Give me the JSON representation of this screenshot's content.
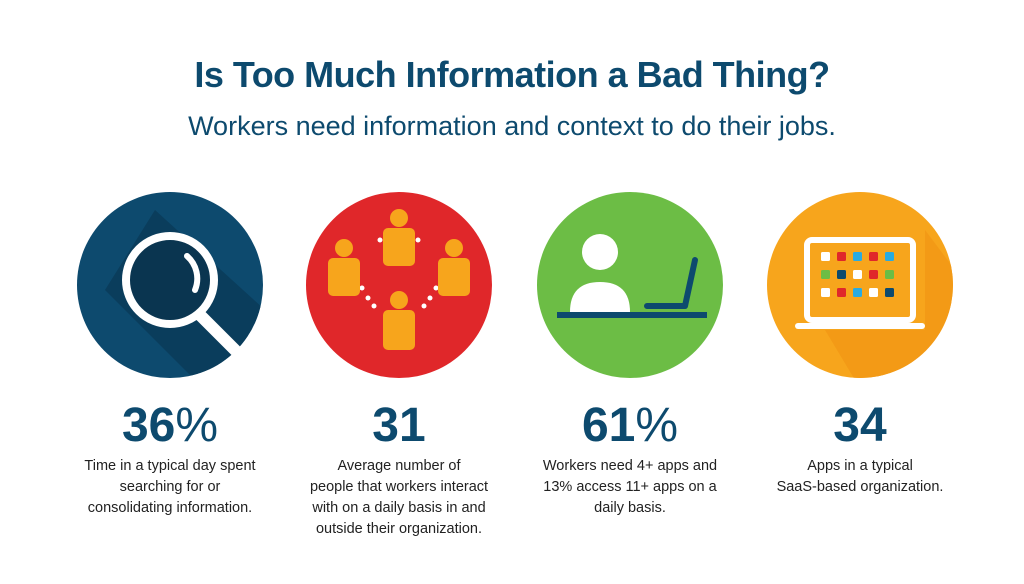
{
  "header": {
    "title": "Is Too Much Information a Bad Thing?",
    "subtitle": "Workers need information and context to do their jobs."
  },
  "stats": [
    {
      "value": "36",
      "suffix": "%",
      "icon": "magnifying-glass-icon",
      "color": "#0d4a6e",
      "lines": [
        "Time in a typical day spent",
        "searching for or",
        "consolidating information."
      ]
    },
    {
      "value": "31",
      "suffix": "",
      "icon": "people-network-icon",
      "color": "#e0272a",
      "lines": [
        "Average number of",
        "people that workers interact",
        "with on a daily basis in and",
        "outside their organization."
      ]
    },
    {
      "value": "61",
      "suffix": "%",
      "icon": "worker-laptop-icon",
      "color": "#6cbd45",
      "lines": [
        "Workers need 4+ apps and",
        "13% access 11+ apps on a",
        "daily basis."
      ]
    },
    {
      "value": "34",
      "suffix": "",
      "icon": "laptop-apps-icon",
      "color": "#f7a51c",
      "lines": [
        "Apps in a typical",
        "SaaS-based organization."
      ]
    }
  ]
}
